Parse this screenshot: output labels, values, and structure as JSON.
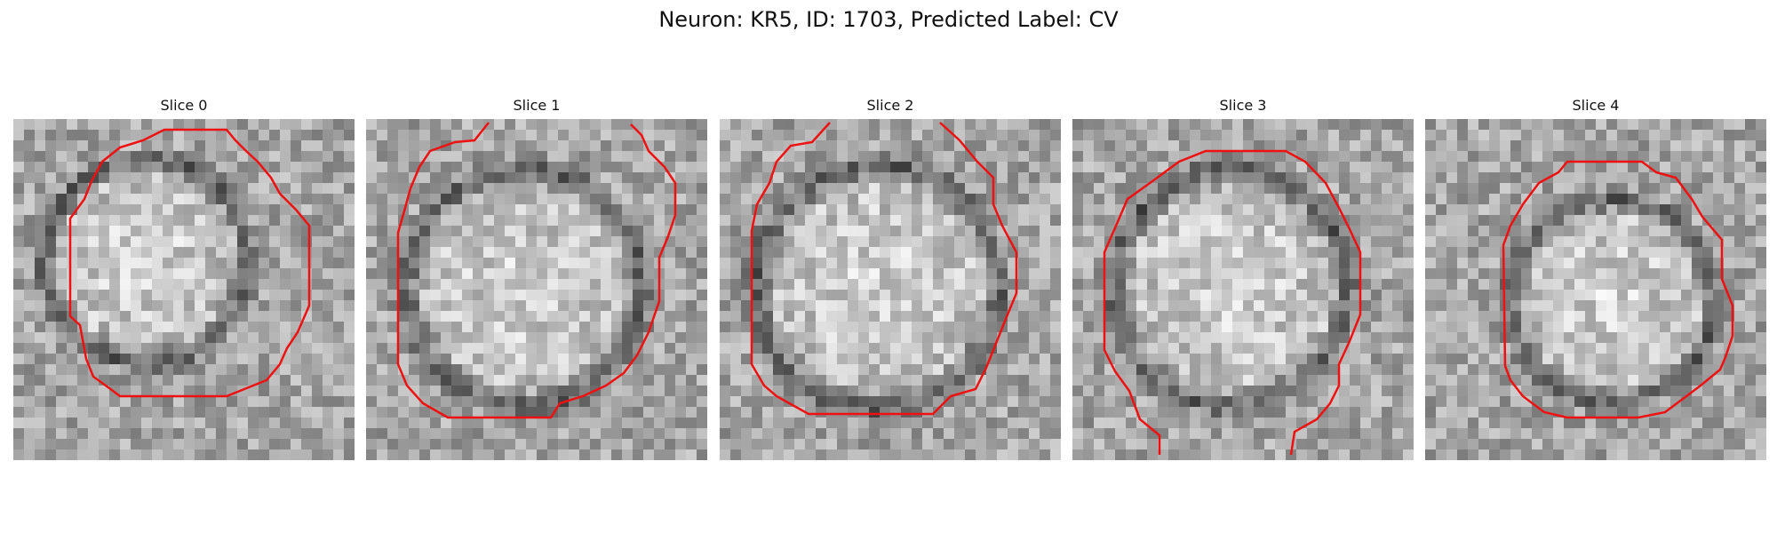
{
  "figure": {
    "title": "Neuron: KR5, ID: 1703, Predicted Label: CV"
  },
  "colors": {
    "contour": "#ee1111",
    "background": "#ffffff"
  },
  "panels": [
    {
      "title": "Slice 0"
    },
    {
      "title": "Slice 1"
    },
    {
      "title": "Slice 2"
    },
    {
      "title": "Slice 3"
    },
    {
      "title": "Slice 4"
    }
  ]
}
